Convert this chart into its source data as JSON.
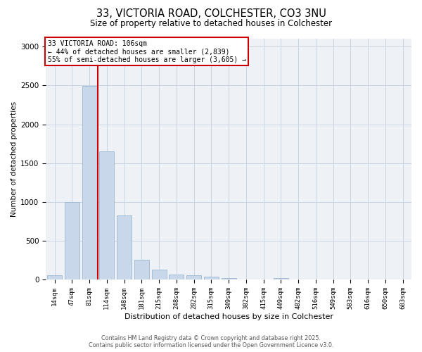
{
  "title_line1": "33, VICTORIA ROAD, COLCHESTER, CO3 3NU",
  "title_line2": "Size of property relative to detached houses in Colchester",
  "xlabel": "Distribution of detached houses by size in Colchester",
  "ylabel": "Number of detached properties",
  "categories": [
    "14sqm",
    "47sqm",
    "81sqm",
    "114sqm",
    "148sqm",
    "181sqm",
    "215sqm",
    "248sqm",
    "282sqm",
    "315sqm",
    "349sqm",
    "382sqm",
    "415sqm",
    "449sqm",
    "482sqm",
    "516sqm",
    "549sqm",
    "583sqm",
    "616sqm",
    "650sqm",
    "683sqm"
  ],
  "values": [
    60,
    1000,
    2490,
    1650,
    830,
    260,
    135,
    65,
    55,
    45,
    20,
    0,
    0,
    25,
    0,
    0,
    0,
    0,
    0,
    0,
    0
  ],
  "bar_color": "#c8d8ea",
  "bar_edge_color": "#9ab8d0",
  "vline_color": "#cc0000",
  "vline_x_index": 2,
  "vline_x_offset": 0.5,
  "ylim_max": 3100,
  "yticks": [
    0,
    500,
    1000,
    1500,
    2000,
    2500,
    3000
  ],
  "grid_color": "#c8d4e0",
  "bg_color": "#eef2f7",
  "annotation_text": "33 VICTORIA ROAD: 106sqm\n← 44% of detached houses are smaller (2,839)\n55% of semi-detached houses are larger (3,605) →",
  "annotation_box_color": "#cc0000",
  "footer_text": "Contains HM Land Registry data © Crown copyright and database right 2025.\nContains public sector information licensed under the Open Government Licence v3.0."
}
